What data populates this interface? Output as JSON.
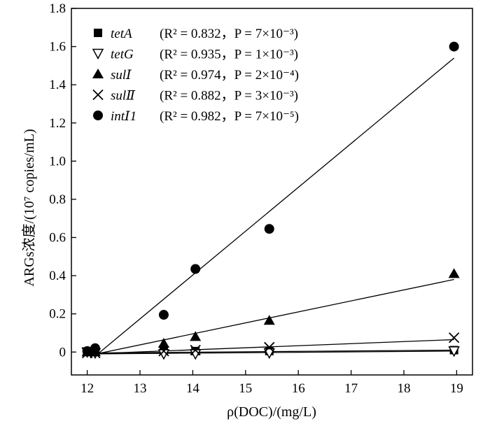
{
  "chart_data": {
    "type": "scatter",
    "xlabel": "ρ(DOC)/(mg/L)",
    "ylabel": "ARGs浓度/(10⁷ copies/mL)",
    "xlim": [
      11.7,
      19.3
    ],
    "ylim": [
      -0.12,
      1.8
    ],
    "xticks": [
      12,
      13,
      14,
      15,
      16,
      17,
      18,
      19
    ],
    "yticks": [
      0,
      0.2,
      0.4,
      0.6,
      0.8,
      1.0,
      1.2,
      1.4,
      1.6,
      1.8
    ],
    "ytick_labels": [
      "0",
      "0.2",
      "0.4",
      "0.6",
      "0.8",
      "1.0",
      "1.2",
      "1.4",
      "1.6",
      "1.8"
    ],
    "legend_position": "top-left",
    "series": [
      {
        "name": "tetA",
        "marker": "square",
        "stats": "(R² = 0.832，P = 7×10⁻³)",
        "x": [
          12.0,
          12.15,
          13.45,
          14.05,
          15.45,
          18.95
        ],
        "y": [
          0.0,
          0.0,
          0.01,
          0.005,
          0.005,
          0.01
        ],
        "fit": [
          [
            12.0,
            -0.005
          ],
          [
            18.95,
            0.01
          ]
        ]
      },
      {
        "name": "tetG",
        "marker": "triangle-down-open",
        "stats": "(R² = 0.935，P = 1×10⁻³)",
        "x": [
          12.0,
          12.15,
          13.45,
          14.05,
          15.45,
          18.95
        ],
        "y": [
          0.0,
          -0.005,
          -0.01,
          -0.01,
          -0.005,
          0.005
        ],
        "fit": [
          [
            12.0,
            -0.01
          ],
          [
            18.95,
            0.005
          ]
        ]
      },
      {
        "name": "sulⅠ",
        "marker": "triangle-up",
        "stats": "(R² = 0.974，P = 2×10⁻⁴)",
        "x": [
          12.0,
          12.15,
          13.45,
          14.05,
          15.45,
          18.95
        ],
        "y": [
          0.0,
          0.0,
          0.045,
          0.08,
          0.165,
          0.41
        ],
        "fit": [
          [
            12.0,
            -0.02
          ],
          [
            18.95,
            0.38
          ]
        ]
      },
      {
        "name": "sulⅡ",
        "marker": "cross",
        "stats": "(R² = 0.882，P = 3×10⁻³)",
        "x": [
          12.0,
          12.15,
          13.45,
          14.05,
          15.45,
          18.95
        ],
        "y": [
          -0.005,
          -0.005,
          0.005,
          0.01,
          0.025,
          0.075
        ],
        "fit": [
          [
            12.0,
            -0.01
          ],
          [
            18.95,
            0.065
          ]
        ]
      },
      {
        "name": "intⅠ1",
        "marker": "circle",
        "stats": "(R² = 0.982，P = 7×10⁻⁵)",
        "x": [
          12.0,
          12.15,
          13.45,
          14.05,
          15.45,
          18.95
        ],
        "y": [
          0.005,
          0.02,
          0.195,
          0.435,
          0.645,
          1.6
        ],
        "fit": [
          [
            12.2,
            -0.01
          ],
          [
            18.95,
            1.54
          ]
        ]
      }
    ]
  }
}
